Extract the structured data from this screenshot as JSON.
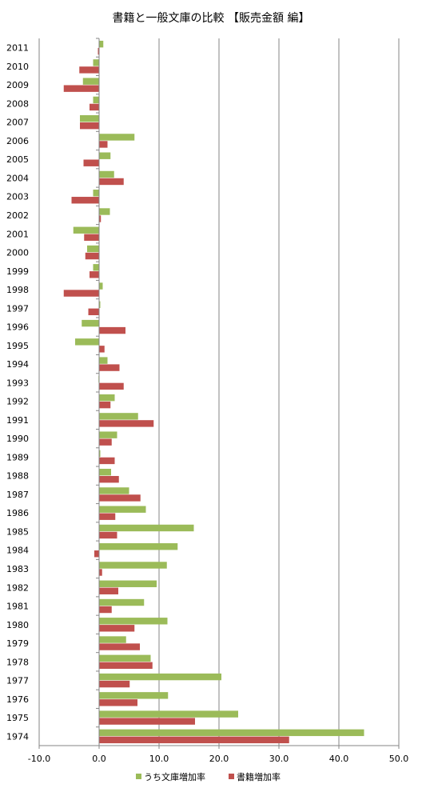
{
  "chart_data": {
    "type": "bar",
    "orientation": "horizontal",
    "title": "書籍と一般文庫の比較 【販売金額 編】",
    "xlabel": "",
    "ylabel": "",
    "xlim": [
      -10,
      50
    ],
    "x_ticks": [
      -10,
      0,
      10,
      20,
      30,
      40,
      50
    ],
    "x_tick_labels": [
      "-10.0",
      "0.0",
      "10.0",
      "20.0",
      "30.0",
      "40.0",
      "50.0"
    ],
    "grid": "vertical",
    "legend_position": "bottom",
    "categories": [
      "2011",
      "2010",
      "2009",
      "2008",
      "2007",
      "2006",
      "2005",
      "2004",
      "2003",
      "2002",
      "2001",
      "2000",
      "1999",
      "1998",
      "1997",
      "1996",
      "1995",
      "1994",
      "1993",
      "1992",
      "1991",
      "1990",
      "1989",
      "1988",
      "1987",
      "1986",
      "1985",
      "1984",
      "1983",
      "1982",
      "1981",
      "1980",
      "1979",
      "1978",
      "1977",
      "1976",
      "1975",
      "1974"
    ],
    "series": [
      {
        "name": "うち文庫増加率",
        "color": "#9bbb59",
        "values": [
          0.7,
          -1.0,
          -2.7,
          -1.0,
          -3.2,
          5.9,
          1.9,
          2.5,
          -1.0,
          1.8,
          -4.3,
          -2.0,
          -1.0,
          0.6,
          0.2,
          -2.9,
          -4.0,
          1.4,
          -0.1,
          2.6,
          6.5,
          3.0,
          0.2,
          2.0,
          5.0,
          7.8,
          15.8,
          13.1,
          11.3,
          9.6,
          7.5,
          11.4,
          4.5,
          8.6,
          20.4,
          11.5,
          23.2,
          44.2
        ]
      },
      {
        "name": "書籍増加率",
        "color": "#c0504d",
        "values": [
          -0.2,
          -3.3,
          -5.9,
          -1.6,
          -3.2,
          1.4,
          -2.6,
          4.1,
          -4.6,
          0.3,
          -2.5,
          -2.3,
          -1.6,
          -5.9,
          -1.8,
          4.4,
          0.9,
          3.4,
          4.1,
          1.9,
          9.1,
          2.1,
          2.6,
          3.3,
          6.9,
          2.7,
          3.0,
          -0.8,
          0.5,
          3.2,
          2.1,
          5.9,
          6.8,
          8.9,
          5.1,
          6.4,
          16.0,
          31.7
        ]
      }
    ]
  }
}
